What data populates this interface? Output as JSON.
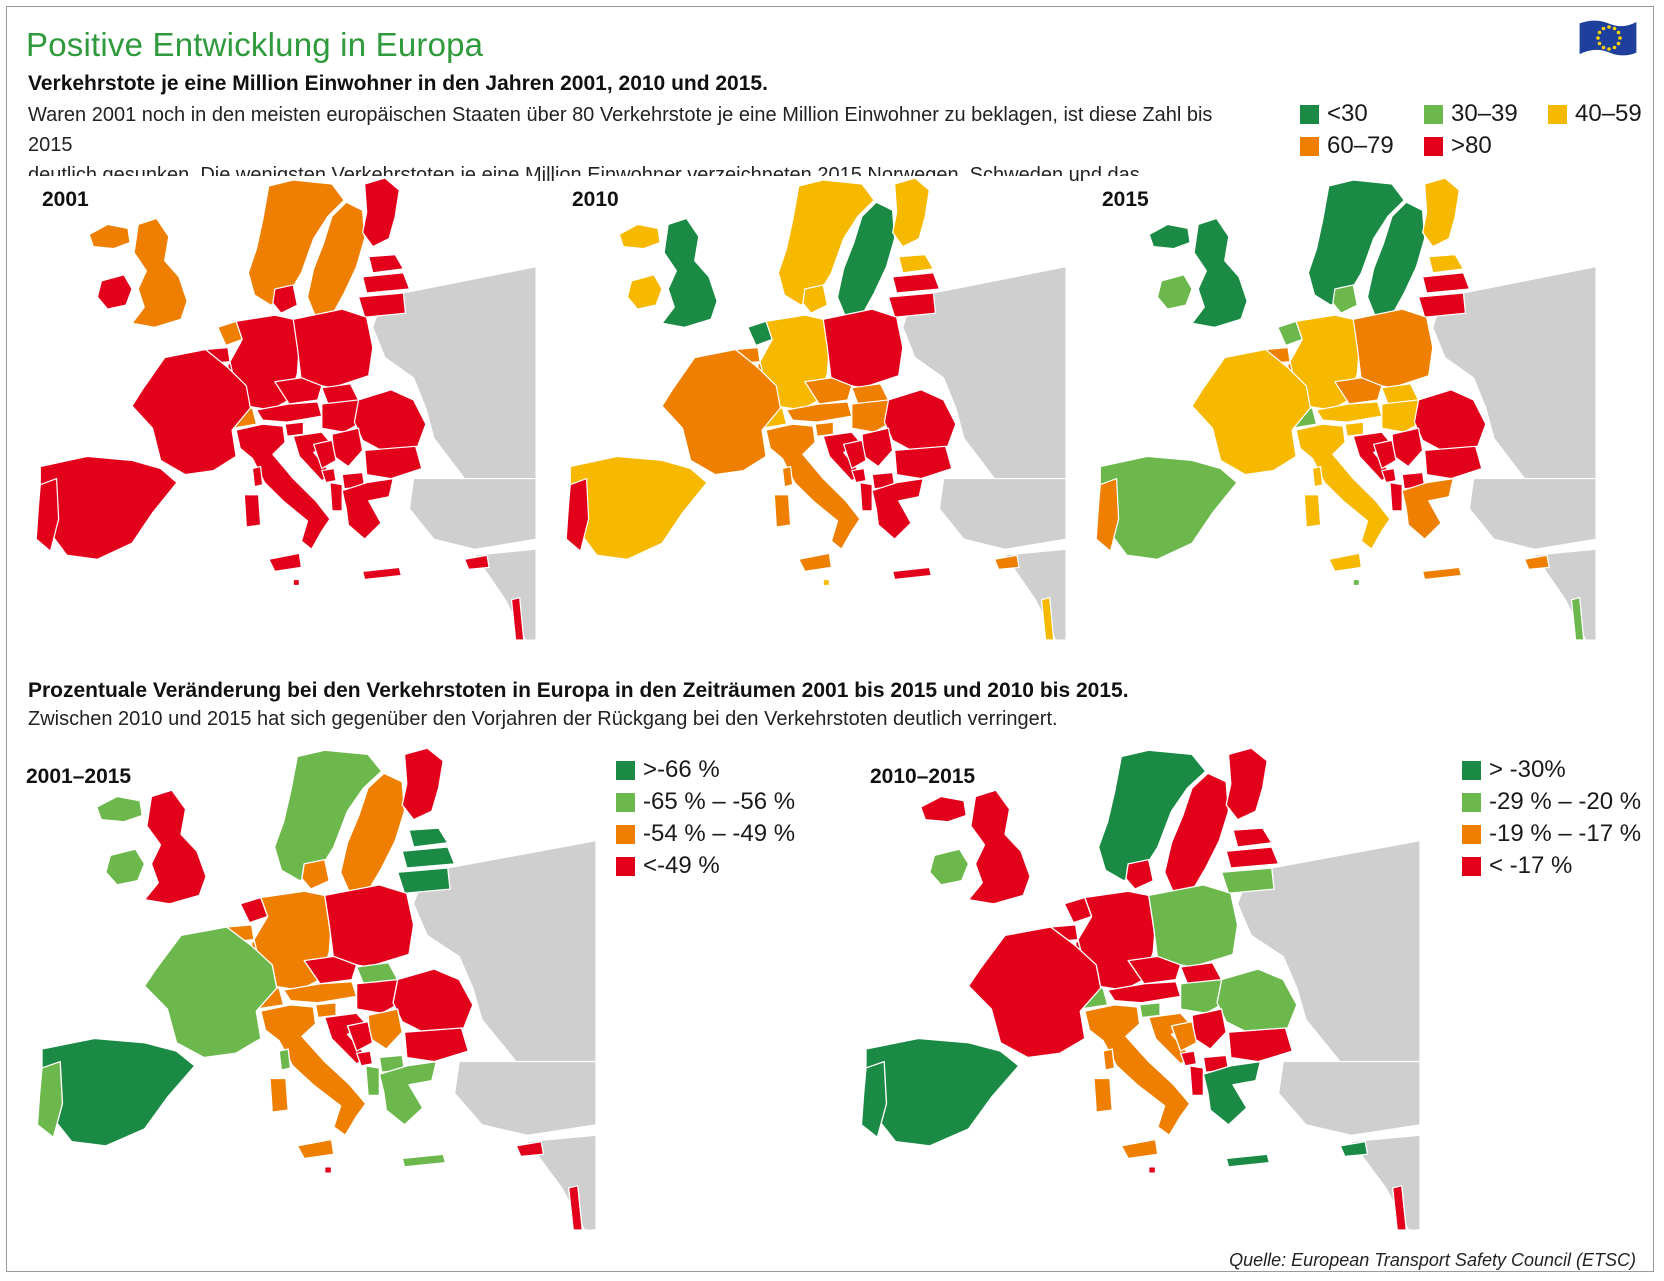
{
  "header": {
    "title": "Positive Entwicklung in Europa",
    "subtitle": "Verkehrstote je eine Million Einwohner in den Jahren 2001, 2010 und 2015.",
    "description_line1": "Waren 2001 noch in den meisten europäischen Staaten über 80 Verkehrstote je eine Million Einwohner zu beklagen, ist diese Zahl bis 2015",
    "description_line2": "deutlich gesunken. Die wenigsten Verkehrstoten je eine Million Einwohner verzeichneten 2015 Norwegen, Schweden und das Vereinigte Königreich."
  },
  "flag_icon": "eu-flag-icon",
  "colors": {
    "dark_green": "#1a8a44",
    "light_green": "#6cb84d",
    "yellow": "#f7b800",
    "orange": "#ee7f00",
    "red": "#e3001b",
    "land_gray": "#cfcfcf",
    "title_green": "#2e9a3c"
  },
  "legend_rate": [
    {
      "label": "<30",
      "color": "#1a8a44"
    },
    {
      "label": "30–39",
      "color": "#6cb84d"
    },
    {
      "label": "40–59",
      "color": "#f7b800"
    },
    {
      "label": "60–79",
      "color": "#ee7f00"
    },
    {
      "label": ">80",
      "color": "#e3001b"
    }
  ],
  "maps_rate": [
    {
      "label": "2001",
      "colors": {
        "IS": "orange",
        "NO": "orange",
        "SE": "orange",
        "FI": "red",
        "EE": "red",
        "LV": "red",
        "LT": "red",
        "IE": "red",
        "UK": "orange",
        "NL": "orange",
        "BE": "red",
        "LU": "red",
        "FR": "red",
        "DE": "red",
        "DK": "red",
        "PL": "red",
        "CZ": "red",
        "SK": "red",
        "AT": "red",
        "HU": "red",
        "SI": "red",
        "HR": "red",
        "CH": "orange",
        "IT": "red",
        "ES": "red",
        "PT": "red",
        "RO": "red",
        "BG": "red",
        "GR": "red",
        "CY": "red",
        "MT": "red",
        "RS": "red",
        "BA": "red",
        "ME": "red",
        "MK": "red",
        "AL": "red",
        "CORSICA": "red",
        "SARDINIA": "red",
        "SICILY": "red",
        "CRETE": "red",
        "ISRAEL": "red"
      }
    },
    {
      "label": "2010",
      "colors": {
        "IS": "yellow",
        "NO": "yellow",
        "SE": "dark_green",
        "FI": "yellow",
        "EE": "yellow",
        "LV": "red",
        "LT": "red",
        "IE": "yellow",
        "UK": "dark_green",
        "NL": "dark_green",
        "BE": "orange",
        "LU": "orange",
        "FR": "orange",
        "DE": "yellow",
        "DK": "yellow",
        "PL": "red",
        "CZ": "orange",
        "SK": "orange",
        "AT": "orange",
        "HU": "orange",
        "SI": "orange",
        "HR": "red",
        "CH": "yellow",
        "IT": "orange",
        "ES": "yellow",
        "PT": "red",
        "RO": "red",
        "BG": "red",
        "GR": "red",
        "CY": "orange",
        "MT": "yellow",
        "RS": "red",
        "BA": "red",
        "ME": "red",
        "MK": "red",
        "AL": "red",
        "CORSICA": "orange",
        "SARDINIA": "orange",
        "SICILY": "orange",
        "CRETE": "red",
        "ISRAEL": "yellow"
      }
    },
    {
      "label": "2015",
      "colors": {
        "IS": "dark_green",
        "NO": "dark_green",
        "SE": "dark_green",
        "FI": "yellow",
        "EE": "yellow",
        "LV": "red",
        "LT": "red",
        "IE": "light_green",
        "UK": "dark_green",
        "NL": "light_green",
        "BE": "orange",
        "LU": "orange",
        "FR": "yellow",
        "DE": "yellow",
        "DK": "light_green",
        "PL": "orange",
        "CZ": "orange",
        "SK": "yellow",
        "AT": "yellow",
        "HU": "yellow",
        "SI": "yellow",
        "HR": "red",
        "CH": "light_green",
        "IT": "yellow",
        "ES": "light_green",
        "PT": "orange",
        "RO": "red",
        "BG": "red",
        "GR": "orange",
        "CY": "orange",
        "MT": "light_green",
        "RS": "red",
        "BA": "red",
        "ME": "red",
        "MK": "red",
        "AL": "red",
        "CORSICA": "yellow",
        "SARDINIA": "yellow",
        "SICILY": "yellow",
        "CRETE": "orange",
        "ISRAEL": "light_green"
      }
    }
  ],
  "section2": {
    "title": "Prozentuale Veränderung bei den Verkehrstoten in Europa in den Zeiträumen 2001 bis 2015 und 2010 bis 2015.",
    "description": "Zwischen 2010 und 2015 hat sich gegenüber den Vorjahren der Rückgang bei den Verkehrstoten deutlich verringert."
  },
  "legend_change_2001": [
    {
      "label": ">-66 %",
      "color": "#1a8a44"
    },
    {
      "label": "-65 % – -56 %",
      "color": "#6cb84d"
    },
    {
      "label": "-54 % – -49 %",
      "color": "#ee7f00"
    },
    {
      "label": "<-49 %",
      "color": "#e3001b"
    }
  ],
  "legend_change_2010": [
    {
      "label": "> -30%",
      "color": "#1a8a44"
    },
    {
      "label": "-29 % – -20 %",
      "color": "#6cb84d"
    },
    {
      "label": "-19 % – -17 %",
      "color": "#ee7f00"
    },
    {
      "label": "< -17 %",
      "color": "#e3001b"
    }
  ],
  "maps_change": [
    {
      "label": "2001–2015",
      "colors": {
        "IS": "light_green",
        "NO": "light_green",
        "SE": "orange",
        "FI": "red",
        "EE": "dark_green",
        "LV": "dark_green",
        "LT": "dark_green",
        "IE": "light_green",
        "UK": "red",
        "NL": "red",
        "BE": "orange",
        "LU": "orange",
        "FR": "light_green",
        "DE": "orange",
        "DK": "orange",
        "PL": "red",
        "CZ": "red",
        "SK": "light_green",
        "AT": "orange",
        "HU": "red",
        "SI": "orange",
        "HR": "red",
        "CH": "orange",
        "IT": "orange",
        "ES": "dark_green",
        "PT": "light_green",
        "RO": "red",
        "BG": "red",
        "GR": "light_green",
        "CY": "red",
        "MT": "red",
        "RS": "orange",
        "BA": "red",
        "ME": "red",
        "MK": "light_green",
        "AL": "light_green",
        "CORSICA": "light_green",
        "SARDINIA": "orange",
        "SICILY": "orange",
        "CRETE": "light_green",
        "ISRAEL": "red"
      }
    },
    {
      "label": "2010–2015",
      "colors": {
        "IS": "red",
        "NO": "dark_green",
        "SE": "red",
        "FI": "red",
        "EE": "red",
        "LV": "red",
        "LT": "light_green",
        "IE": "light_green",
        "UK": "red",
        "NL": "red",
        "BE": "red",
        "LU": "red",
        "FR": "red",
        "DE": "red",
        "DK": "red",
        "PL": "light_green",
        "CZ": "red",
        "SK": "red",
        "AT": "red",
        "HU": "light_green",
        "SI": "light_green",
        "HR": "orange",
        "CH": "light_green",
        "IT": "orange",
        "ES": "dark_green",
        "PT": "dark_green",
        "RO": "light_green",
        "BG": "red",
        "GR": "dark_green",
        "CY": "dark_green",
        "MT": "red",
        "RS": "red",
        "BA": "orange",
        "ME": "red",
        "MK": "red",
        "AL": "red",
        "CORSICA": "orange",
        "SARDINIA": "orange",
        "SICILY": "orange",
        "CRETE": "dark_green",
        "ISRAEL": "red"
      }
    }
  ],
  "source": "Quelle: European Transport Safety Council (ETSC)"
}
